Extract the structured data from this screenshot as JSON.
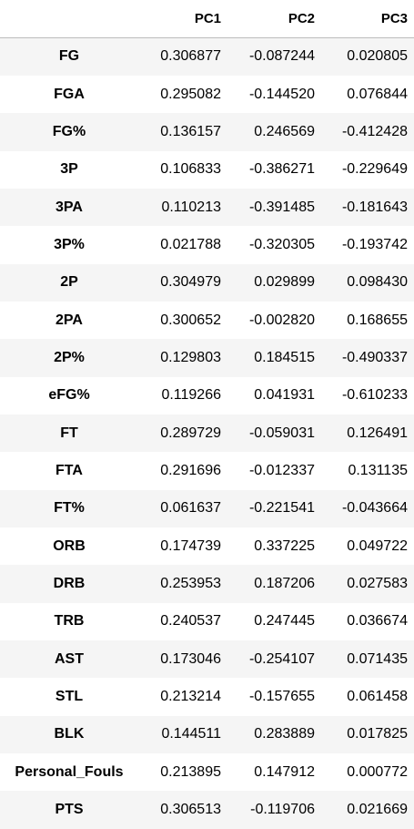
{
  "columns": [
    "",
    "PC1",
    "PC2",
    "PC3"
  ],
  "rows": [
    {
      "label": "FG",
      "pc1": "0.306877",
      "pc2": "-0.087244",
      "pc3": "0.020805"
    },
    {
      "label": "FGA",
      "pc1": "0.295082",
      "pc2": "-0.144520",
      "pc3": "0.076844"
    },
    {
      "label": "FG%",
      "pc1": "0.136157",
      "pc2": "0.246569",
      "pc3": "-0.412428"
    },
    {
      "label": "3P",
      "pc1": "0.106833",
      "pc2": "-0.386271",
      "pc3": "-0.229649"
    },
    {
      "label": "3PA",
      "pc1": "0.110213",
      "pc2": "-0.391485",
      "pc3": "-0.181643"
    },
    {
      "label": "3P%",
      "pc1": "0.021788",
      "pc2": "-0.320305",
      "pc3": "-0.193742"
    },
    {
      "label": "2P",
      "pc1": "0.304979",
      "pc2": "0.029899",
      "pc3": "0.098430"
    },
    {
      "label": "2PA",
      "pc1": "0.300652",
      "pc2": "-0.002820",
      "pc3": "0.168655"
    },
    {
      "label": "2P%",
      "pc1": "0.129803",
      "pc2": "0.184515",
      "pc3": "-0.490337"
    },
    {
      "label": "eFG%",
      "pc1": "0.119266",
      "pc2": "0.041931",
      "pc3": "-0.610233"
    },
    {
      "label": "FT",
      "pc1": "0.289729",
      "pc2": "-0.059031",
      "pc3": "0.126491"
    },
    {
      "label": "FTA",
      "pc1": "0.291696",
      "pc2": "-0.012337",
      "pc3": "0.131135"
    },
    {
      "label": "FT%",
      "pc1": "0.061637",
      "pc2": "-0.221541",
      "pc3": "-0.043664"
    },
    {
      "label": "ORB",
      "pc1": "0.174739",
      "pc2": "0.337225",
      "pc3": "0.049722"
    },
    {
      "label": "DRB",
      "pc1": "0.253953",
      "pc2": "0.187206",
      "pc3": "0.027583"
    },
    {
      "label": "TRB",
      "pc1": "0.240537",
      "pc2": "0.247445",
      "pc3": "0.036674"
    },
    {
      "label": "AST",
      "pc1": "0.173046",
      "pc2": "-0.254107",
      "pc3": "0.071435"
    },
    {
      "label": "STL",
      "pc1": "0.213214",
      "pc2": "-0.157655",
      "pc3": "0.061458"
    },
    {
      "label": "BLK",
      "pc1": "0.144511",
      "pc2": "0.283889",
      "pc3": "0.017825"
    },
    {
      "label": "Personal_Fouls",
      "pc1": "0.213895",
      "pc2": "0.147912",
      "pc3": "0.000772"
    },
    {
      "label": "PTS",
      "pc1": "0.306513",
      "pc2": "-0.119706",
      "pc3": "0.021669"
    }
  ]
}
